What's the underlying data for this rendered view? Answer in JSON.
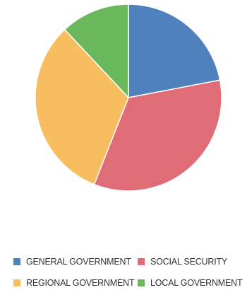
{
  "chart_data": {
    "type": "pie",
    "slices": [
      {
        "name": "GENERAL GOVERNMENT",
        "value": 22,
        "color": "#4f81bd"
      },
      {
        "name": "SOCIAL SECURITY",
        "value": 34,
        "color": "#e06c78"
      },
      {
        "name": "REGIONAL GOVERNMENT",
        "value": 32,
        "color": "#f8bd5e"
      },
      {
        "name": "LOCAL GOVERNMENT",
        "value": 12,
        "color": "#6bb85c"
      }
    ],
    "start_angle_deg": 0,
    "direction": "clockwise",
    "legend_position": "bottom",
    "title": ""
  },
  "legend": {
    "items": [
      {
        "label": "GENERAL GOVERNMENT",
        "color": "#4f81bd"
      },
      {
        "label": "SOCIAL SECURITY",
        "color": "#e06c78"
      },
      {
        "label": "REGIONAL GOVERNMENT",
        "color": "#f8bd5e"
      },
      {
        "label": "LOCAL GOVERNMENT",
        "color": "#6bb85c"
      }
    ]
  }
}
